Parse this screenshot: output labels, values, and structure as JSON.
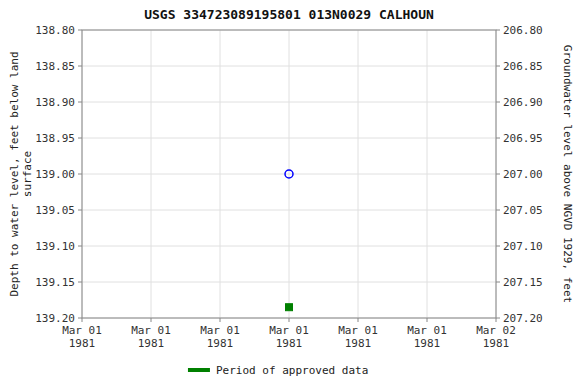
{
  "chart_data": {
    "type": "scatter",
    "title": "USGS 334723089195801 013N0029  CALHOUN",
    "y_label": "Depth to water level, feet below land\nsurface",
    "y2_label": "Groundwater level above NGVD 1929, feet",
    "categories": [
      "Mar 01\n1981",
      "Mar 01\n1981",
      "Mar 01\n1981",
      "Mar 01\n1981",
      "Mar 01\n1981",
      "Mar 01\n1981",
      "Mar 02\n1981"
    ],
    "series": [
      {
        "color": "blue",
        "marker": "circle-open",
        "values": [
          null,
          null,
          null,
          139.0,
          null,
          null,
          null
        ]
      },
      {
        "name": "Period of approved data",
        "color": "green",
        "marker": "square",
        "values": [
          null,
          null,
          null,
          139.185,
          null,
          null,
          null
        ]
      }
    ],
    "ylim": [
      139.2,
      138.8
    ],
    "yticks": [
      {
        "value": 138.8,
        "label": "138.80"
      },
      {
        "value": 138.85,
        "label": "138.85"
      },
      {
        "value": 138.9,
        "label": "138.90"
      },
      {
        "value": 138.95,
        "label": "138.95"
      },
      {
        "value": 139.0,
        "label": "139.00"
      },
      {
        "value": 139.05,
        "label": "139.05"
      },
      {
        "value": 139.1,
        "label": "139.10"
      },
      {
        "value": 139.15,
        "label": "139.15"
      },
      {
        "value": 139.2,
        "label": "139.20"
      }
    ],
    "y2lim": [
      207.2,
      206.8
    ],
    "y2ticks": [
      {
        "value": 206.8,
        "label": "206.80"
      },
      {
        "value": 206.85,
        "label": "206.85"
      },
      {
        "value": 206.9,
        "label": "206.90"
      },
      {
        "value": 206.95,
        "label": "206.95"
      },
      {
        "value": 207.0,
        "label": "207.00"
      },
      {
        "value": 207.05,
        "label": "207.05"
      },
      {
        "value": 207.1,
        "label": "207.10"
      },
      {
        "value": 207.15,
        "label": "207.15"
      },
      {
        "value": 207.2,
        "label": "207.20"
      }
    ],
    "grid": true,
    "legend": "bottom"
  }
}
